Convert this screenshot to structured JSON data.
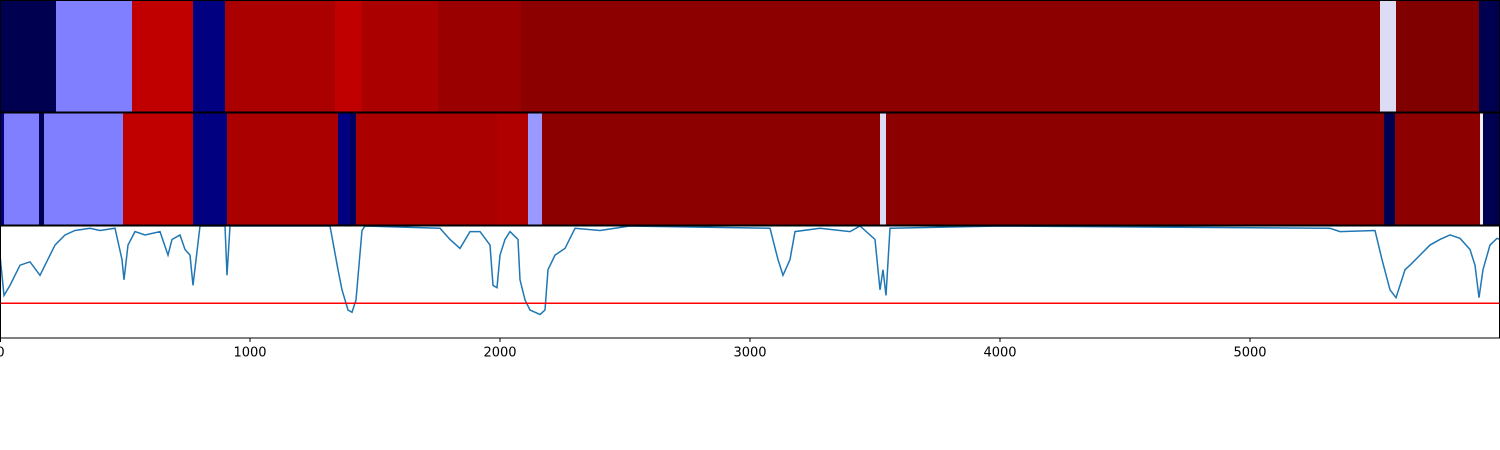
{
  "chart_data": [
    {
      "type": "strip",
      "xlim": [
        0,
        6000
      ],
      "segments": [
        {
          "start": 0,
          "end": 224,
          "color": "#000050"
        },
        {
          "start": 224,
          "end": 528,
          "color": "#7f7fff"
        },
        {
          "start": 528,
          "end": 772,
          "color": "#c00000"
        },
        {
          "start": 772,
          "end": 900,
          "color": "#000080"
        },
        {
          "start": 900,
          "end": 1340,
          "color": "#aa0000"
        },
        {
          "start": 1340,
          "end": 1448,
          "color": "#c00000"
        },
        {
          "start": 1448,
          "end": 1752,
          "color": "#aa0000"
        },
        {
          "start": 1752,
          "end": 2084,
          "color": "#9a0000"
        },
        {
          "start": 2084,
          "end": 5520,
          "color": "#8c0000"
        },
        {
          "start": 5520,
          "end": 5584,
          "color": "#dcdcf5"
        },
        {
          "start": 5584,
          "end": 5916,
          "color": "#800000"
        },
        {
          "start": 5916,
          "end": 6000,
          "color": "#000050"
        }
      ]
    },
    {
      "type": "strip",
      "xlim": [
        0,
        6000
      ],
      "segments": [
        {
          "start": 0,
          "end": 16,
          "color": "#000080"
        },
        {
          "start": 16,
          "end": 156,
          "color": "#7f7fff"
        },
        {
          "start": 156,
          "end": 176,
          "color": "#000050"
        },
        {
          "start": 176,
          "end": 492,
          "color": "#7f7fff"
        },
        {
          "start": 492,
          "end": 772,
          "color": "#c00000"
        },
        {
          "start": 772,
          "end": 908,
          "color": "#000080"
        },
        {
          "start": 908,
          "end": 1352,
          "color": "#aa0000"
        },
        {
          "start": 1352,
          "end": 1400,
          "color": "#000080"
        },
        {
          "start": 1400,
          "end": 1424,
          "color": "#000060"
        },
        {
          "start": 1424,
          "end": 1988,
          "color": "#aa0000"
        },
        {
          "start": 1988,
          "end": 2112,
          "color": "#b00000"
        },
        {
          "start": 2112,
          "end": 2168,
          "color": "#9999ff"
        },
        {
          "start": 2168,
          "end": 3520,
          "color": "#8c0000"
        },
        {
          "start": 3520,
          "end": 3544,
          "color": "#dcdcf5"
        },
        {
          "start": 3544,
          "end": 5536,
          "color": "#8c0000"
        },
        {
          "start": 5536,
          "end": 5580,
          "color": "#000050"
        },
        {
          "start": 5580,
          "end": 5920,
          "color": "#8c0000"
        },
        {
          "start": 5920,
          "end": 5932,
          "color": "#f0f0f0"
        },
        {
          "start": 5932,
          "end": 6000,
          "color": "#000050"
        }
      ]
    },
    {
      "type": "line",
      "xlim": [
        0,
        6000
      ],
      "ylim": [
        0,
        1
      ],
      "xticks": [
        0,
        1000,
        2000,
        3000,
        4000,
        5000
      ],
      "color": "#1f77b4",
      "threshold": {
        "value": 0.31,
        "color": "#ff0000"
      },
      "x": [
        0,
        16,
        40,
        80,
        120,
        160,
        180,
        220,
        260,
        300,
        360,
        400,
        460,
        488,
        496,
        512,
        540,
        580,
        640,
        672,
        688,
        720,
        740,
        760,
        772,
        800,
        900,
        908,
        920,
        1320,
        1352,
        1368,
        1392,
        1408,
        1424,
        1448,
        1460,
        1760,
        1800,
        1840,
        1880,
        1920,
        1960,
        1972,
        1988,
        2000,
        2020,
        2040,
        2072,
        2080,
        2100,
        2120,
        2160,
        2180,
        2192,
        2220,
        2260,
        2300,
        2400,
        2520,
        3080,
        3112,
        3132,
        3160,
        3180,
        3280,
        3400,
        3440,
        3500,
        3520,
        3532,
        3544,
        3560,
        4000,
        5320,
        5360,
        5500,
        5528,
        5560,
        5584,
        5600,
        5620,
        5640,
        5680,
        5720,
        5760,
        5800,
        5840,
        5880,
        5900,
        5916,
        5932,
        5960,
        5988,
        6000
      ],
      "values": [
        0.74,
        0.38,
        0.47,
        0.65,
        0.68,
        0.56,
        0.65,
        0.83,
        0.92,
        0.96,
        0.98,
        0.96,
        0.98,
        0.7,
        0.52,
        0.83,
        0.95,
        0.92,
        0.95,
        0.74,
        0.88,
        0.92,
        0.79,
        0.74,
        0.47,
        1,
        1,
        0.56,
        1,
        1,
        0.61,
        0.43,
        0.25,
        0.23,
        0.34,
        0.96,
        1,
        0.98,
        0.88,
        0.8,
        0.95,
        0.95,
        0.83,
        0.47,
        0.45,
        0.74,
        0.88,
        0.95,
        0.88,
        0.52,
        0.34,
        0.25,
        0.21,
        0.25,
        0.61,
        0.74,
        0.8,
        0.98,
        0.96,
        1,
        0.98,
        0.7,
        0.56,
        0.7,
        0.95,
        0.98,
        0.95,
        1,
        0.88,
        0.43,
        0.61,
        0.38,
        0.98,
        1,
        0.98,
        0.95,
        0.96,
        0.7,
        0.43,
        0.36,
        0.47,
        0.61,
        0.65,
        0.74,
        0.83,
        0.88,
        0.92,
        0.89,
        0.79,
        0.65,
        0.36,
        0.61,
        0.83,
        0.89,
        0.88
      ]
    }
  ]
}
